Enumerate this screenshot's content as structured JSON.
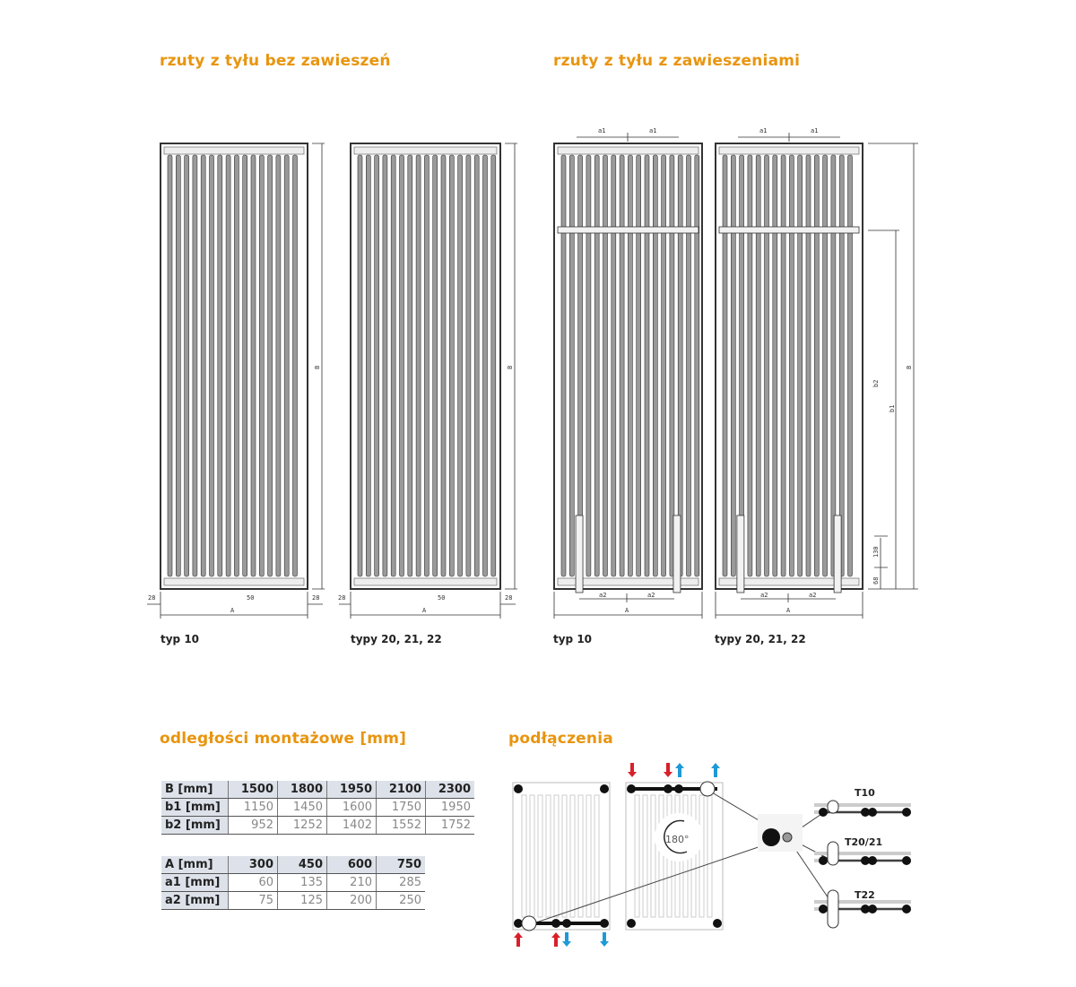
{
  "sections": {
    "without_hangers_title": "rzuty z tyłu bez zawieszeń",
    "with_hangers_title": "rzuty z tyłu z zawieszeniami",
    "distances_title": "odległości montażowe [mm]",
    "connections_title": "podłączenia"
  },
  "captions": [
    "typ 10",
    "typy 20, 21, 22",
    "typ 10",
    "typy 20, 21, 22"
  ],
  "dimensions": {
    "side": "28",
    "conn": "50",
    "A": "A",
    "B": "B",
    "a1": "a1",
    "a2": "a2",
    "b1": "b1",
    "b2": "b2",
    "d130": "130",
    "d68": "68"
  },
  "table_B": {
    "header": [
      "B [mm]",
      "1500",
      "1800",
      "1950",
      "2100",
      "2300"
    ],
    "rows": [
      [
        "b1 [mm]",
        "1150",
        "1450",
        "1600",
        "1750",
        "1950"
      ],
      [
        "b2 [mm]",
        "952",
        "1252",
        "1402",
        "1552",
        "1752"
      ]
    ]
  },
  "table_A": {
    "header": [
      "A [mm]",
      "300",
      "450",
      "600",
      "750"
    ],
    "rows": [
      [
        "a1 [mm]",
        "60",
        "135",
        "210",
        "285"
      ],
      [
        "a2 [mm]",
        "75",
        "125",
        "200",
        "250"
      ]
    ]
  },
  "connections": {
    "rotation": "180°",
    "types": [
      "T10",
      "T20/21",
      "T22"
    ]
  },
  "colors": {
    "accent": "#e8950f",
    "supply": "#d9202a",
    "return": "#1e9ad6",
    "table_header": "#dde2ea"
  }
}
